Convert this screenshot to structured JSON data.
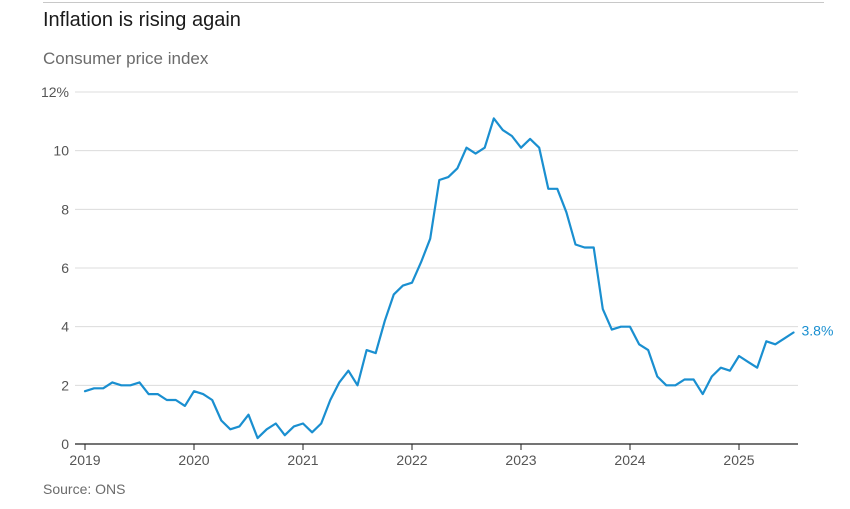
{
  "header": {
    "title": "Inflation is rising again",
    "subtitle": "Consumer price index"
  },
  "footer": {
    "source": "Source: ONS"
  },
  "colors": {
    "line": "#1a8fd0",
    "grid": "#dcdcdc",
    "axis": "#222222",
    "tick_text": "#555555"
  },
  "chart_data": {
    "type": "line",
    "title": "Inflation is rising again",
    "subtitle": "Consumer price index",
    "xlabel": "",
    "ylabel": "",
    "ylim": [
      0,
      12
    ],
    "yticks": [
      0,
      2,
      4,
      6,
      8,
      10,
      12
    ],
    "ytick_labels": [
      "0",
      "2",
      "4",
      "6",
      "8",
      "10",
      "12%"
    ],
    "xticks": [
      2019,
      2020,
      2021,
      2022,
      2023,
      2024,
      2025
    ],
    "xtick_labels": [
      "2019",
      "2020",
      "2021",
      "2022",
      "2023",
      "2024",
      "2025"
    ],
    "grid": true,
    "series": [
      {
        "start": "2019-01",
        "end": "2025-07",
        "frequency": "monthly",
        "values": [
          1.8,
          1.9,
          1.9,
          2.1,
          2.0,
          2.0,
          2.1,
          1.7,
          1.7,
          1.5,
          1.5,
          1.3,
          1.8,
          1.7,
          1.5,
          0.8,
          0.5,
          0.6,
          1.0,
          0.2,
          0.5,
          0.7,
          0.3,
          0.6,
          0.7,
          0.4,
          0.7,
          1.5,
          2.1,
          2.5,
          2.0,
          3.2,
          3.1,
          4.2,
          5.1,
          5.4,
          5.5,
          6.2,
          7.0,
          9.0,
          9.1,
          9.4,
          10.1,
          9.9,
          10.1,
          11.1,
          10.7,
          10.5,
          10.1,
          10.4,
          10.1,
          8.7,
          8.7,
          7.9,
          6.8,
          6.7,
          6.7,
          4.6,
          3.9,
          4.0,
          4.0,
          3.4,
          3.2,
          2.3,
          2.0,
          2.0,
          2.2,
          2.2,
          1.7,
          2.3,
          2.6,
          2.5,
          3.0,
          2.8,
          2.6,
          3.5,
          3.4,
          3.6,
          3.8
        ]
      }
    ],
    "end_label": "3.8%"
  }
}
